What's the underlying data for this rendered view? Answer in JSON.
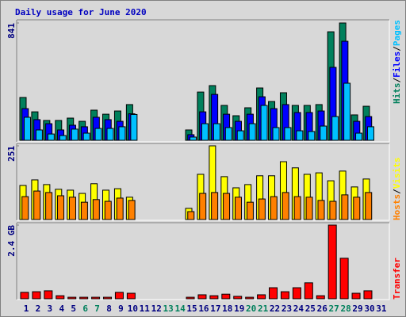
{
  "title": "Daily usage for June 2020",
  "chart_data": [
    {
      "type": "bar",
      "legend_separator": "/",
      "legend_reverse": false,
      "ylim": [
        0,
        841
      ],
      "yticks": [
        841
      ],
      "series": [
        {
          "name": "Hits",
          "color": "#00805C",
          "values": [
            307,
            204,
            142,
            142,
            159,
            136,
            216,
            187,
            210,
            256,
            0,
            0,
            0,
            0,
            74,
            346,
            392,
            250,
            176,
            233,
            375,
            278,
            341,
            250,
            250,
            256,
            778,
            841,
            182,
            244,
            0
          ]
        },
        {
          "name": "Files",
          "color": "#0000FF",
          "values": [
            227,
            148,
            119,
            74,
            108,
            97,
            165,
            148,
            136,
            190,
            0,
            0,
            0,
            0,
            40,
            204,
            329,
            187,
            136,
            187,
            312,
            227,
            256,
            199,
            199,
            210,
            523,
            710,
            136,
            170,
            0
          ]
        },
        {
          "name": "Pages",
          "color": "#00C0FF",
          "values": [
            165,
            74,
            45,
            34,
            80,
            51,
            85,
            85,
            97,
            185,
            0,
            0,
            0,
            0,
            23,
            119,
            119,
            91,
            68,
            119,
            250,
            91,
            91,
            68,
            63,
            102,
            170,
            409,
            51,
            97,
            0
          ]
        }
      ]
    },
    {
      "type": "bar",
      "legend_separator": "/",
      "legend_reverse": true,
      "ylim": [
        0,
        251
      ],
      "yticks": [
        251
      ],
      "series": [
        {
          "name": "Visits",
          "color": "#FFFF00",
          "values": [
            116,
            135,
            119,
            103,
            100,
            89,
            122,
            100,
            105,
            76,
            0,
            0,
            0,
            0,
            38,
            154,
            251,
            146,
            108,
            119,
            149,
            149,
            197,
            176,
            154,
            159,
            132,
            165,
            111,
            138,
            0
          ]
        },
        {
          "name": "Hosts",
          "color": "#FF8000",
          "values": [
            78,
            97,
            92,
            81,
            76,
            59,
            68,
            62,
            73,
            65,
            0,
            0,
            0,
            0,
            27,
            89,
            92,
            89,
            76,
            59,
            70,
            78,
            92,
            78,
            76,
            65,
            62,
            84,
            76,
            92,
            0
          ]
        }
      ]
    },
    {
      "type": "bar",
      "legend_reverse": false,
      "ylim": [
        0,
        2.4
      ],
      "yticks": [
        {
          "value": 2.4,
          "label": "2.4 GB"
        }
      ],
      "categories": [
        "1",
        "2",
        "3",
        "4",
        "5",
        "6",
        "7",
        "8",
        "9",
        "10",
        "11",
        "12",
        "13",
        "14",
        "15",
        "16",
        "17",
        "18",
        "19",
        "20",
        "21",
        "22",
        "23",
        "24",
        "25",
        "26",
        "27",
        "28",
        "29",
        "30",
        "31"
      ],
      "category_colors": [
        "#000080",
        "#000080",
        "#000080",
        "#000080",
        "#000080",
        "#00805C",
        "#00805C",
        "#000080",
        "#000080",
        "#000080",
        "#000080",
        "#000080",
        "#00805C",
        "#00805C",
        "#000080",
        "#000080",
        "#000080",
        "#000080",
        "#000080",
        "#00805C",
        "#00805C",
        "#000080",
        "#000080",
        "#000080",
        "#000080",
        "#000080",
        "#00805C",
        "#00805C",
        "#000080",
        "#000080",
        "#000080"
      ],
      "series": [
        {
          "name": "Transfer",
          "color": "#FF0000",
          "values": [
            0.21,
            0.23,
            0.26,
            0.1,
            0.05,
            0.05,
            0.05,
            0.05,
            0.21,
            0.18,
            0,
            0,
            0,
            0,
            0.05,
            0.13,
            0.1,
            0.15,
            0.08,
            0.05,
            0.13,
            0.36,
            0.23,
            0.36,
            0.52,
            0.1,
            2.4,
            1.32,
            0.18,
            0.26,
            0
          ]
        }
      ]
    }
  ]
}
